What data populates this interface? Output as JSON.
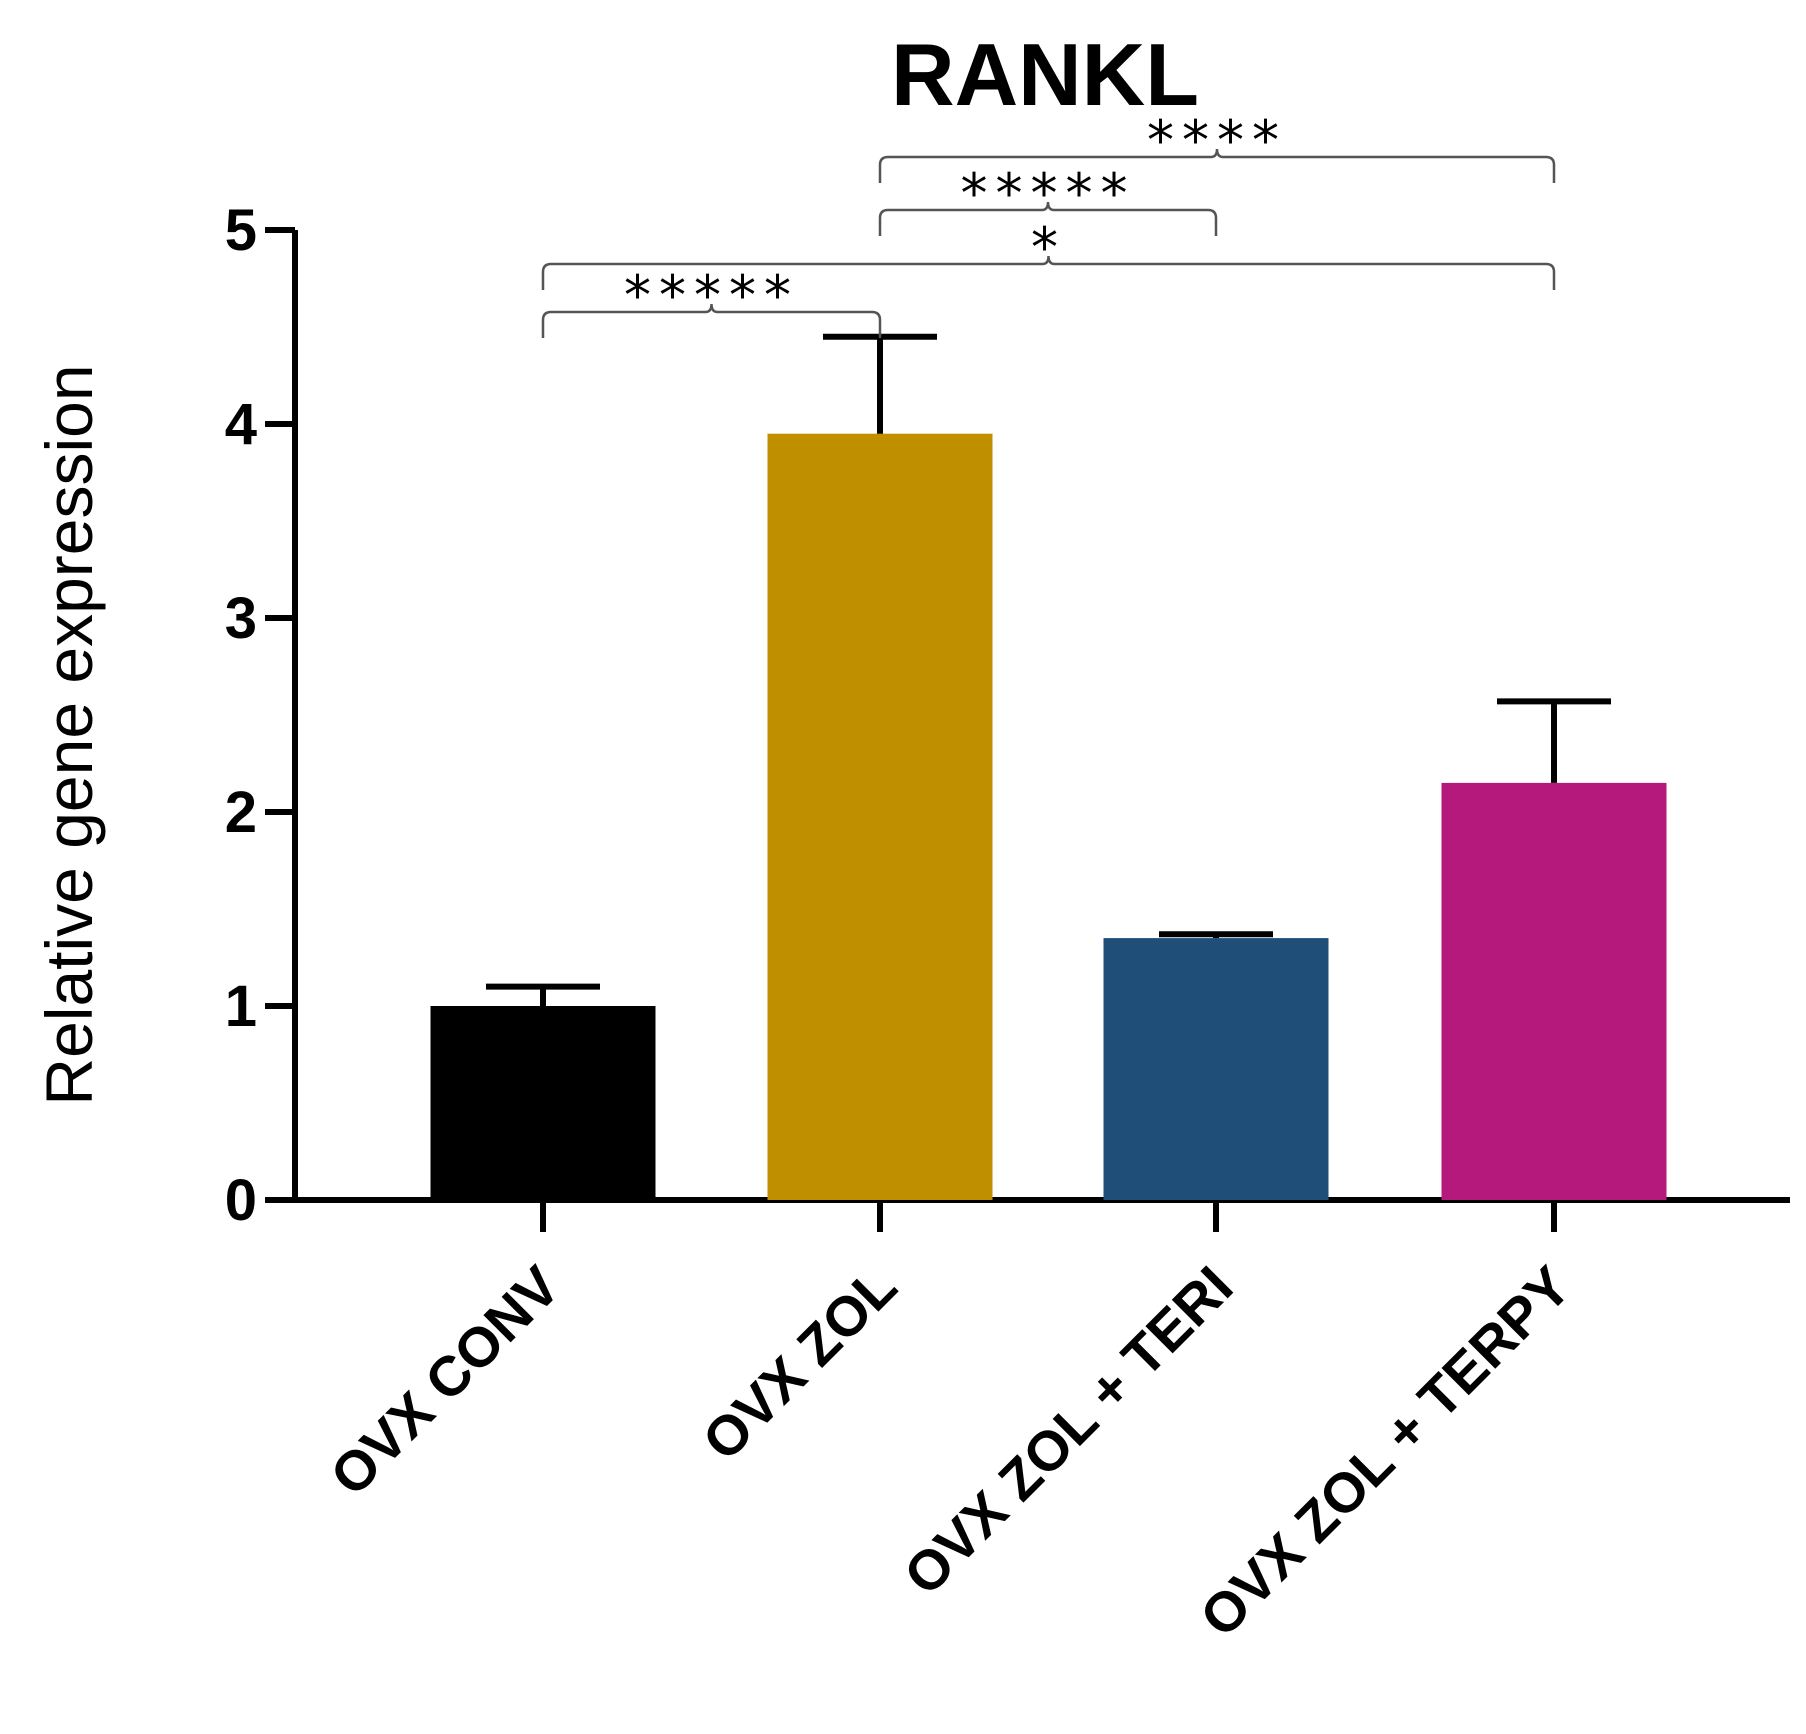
{
  "chart_data": {
    "type": "bar",
    "title": "RANKL",
    "xlabel": "",
    "ylabel": "Relative gene expression",
    "ylim": [
      0,
      5
    ],
    "yticks": [
      "0",
      "1",
      "2",
      "3",
      "4",
      "5"
    ],
    "categories": [
      "OVX CONV",
      "OVX ZOL",
      "OVX ZOL + TERI",
      "OVX ZOL + TERPY"
    ],
    "values": [
      1.0,
      3.95,
      1.35,
      2.15
    ],
    "errors": [
      0.1,
      0.5,
      0.02,
      0.42
    ],
    "colors": [
      "#000000",
      "#BF8F00",
      "#1F4E79",
      "#B5197B"
    ],
    "grid": false,
    "significance": [
      {
        "from": 0,
        "to": 1,
        "label": "*****"
      },
      {
        "from": 0,
        "to": 3,
        "label": "*"
      },
      {
        "from": 1,
        "to": 2,
        "label": "*****"
      },
      {
        "from": 1,
        "to": 3,
        "label": "****"
      }
    ]
  }
}
